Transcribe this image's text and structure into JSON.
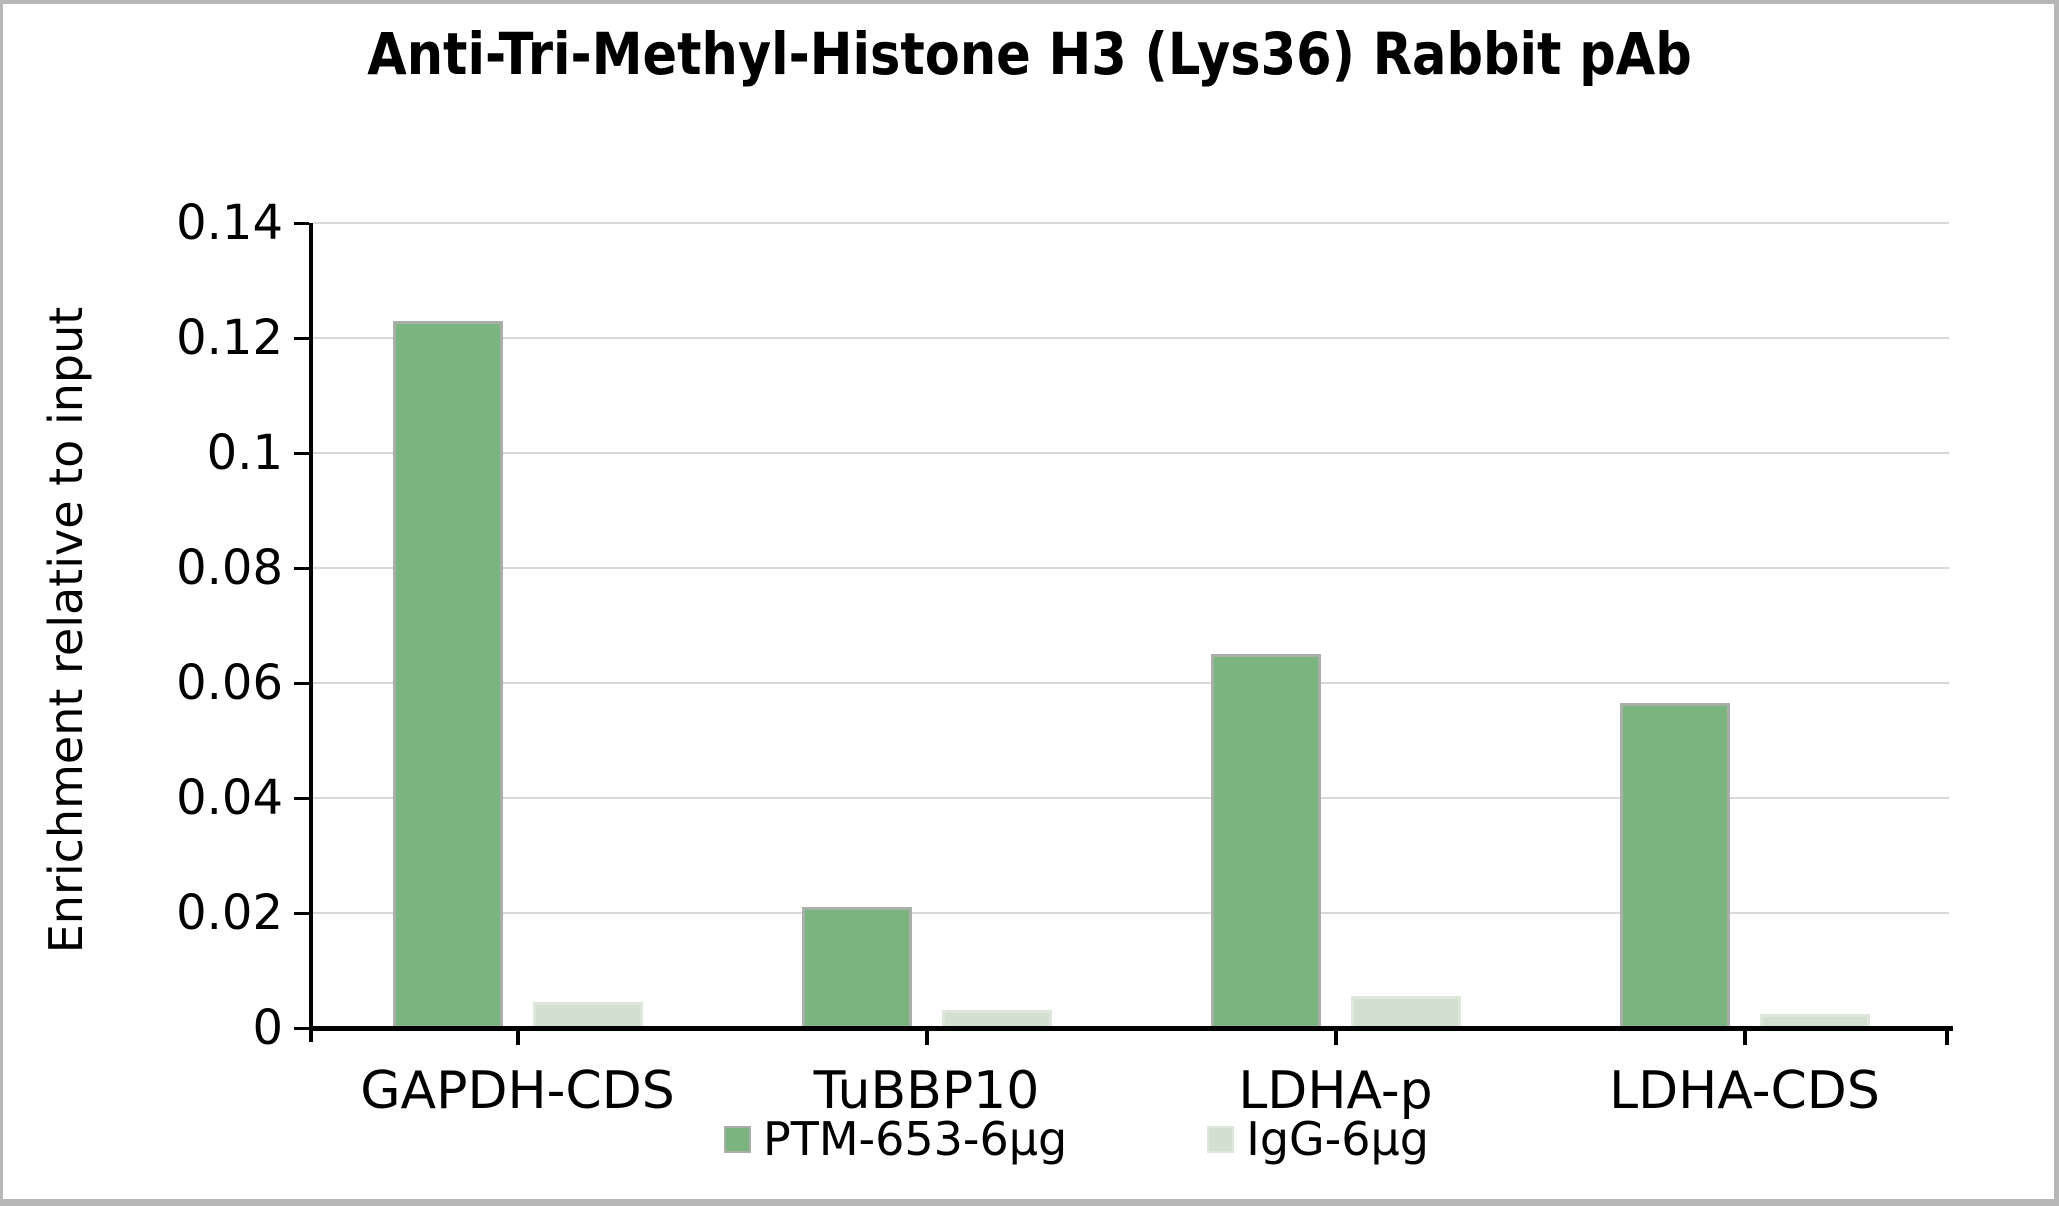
{
  "chart_data": {
    "type": "bar",
    "title": "Anti-Tri-Methyl-Histone H3 (Lys36) Rabbit pAb",
    "xlabel": "",
    "ylabel": "Enrichment relative to input",
    "categories": [
      "GAPDH-CDS",
      "TuBBP10",
      "LDHA-p",
      "LDHA-CDS"
    ],
    "series": [
      {
        "name": "PTM-653-6µg",
        "color": "#7cb480",
        "edge": "#a8aea8",
        "values": [
          0.123,
          0.021,
          0.065,
          0.0565
        ]
      },
      {
        "name": "IgG-6µg",
        "color": "#d1e0cf",
        "edge": "#dde7dc",
        "values": [
          0.0045,
          0.0032,
          0.0055,
          0.0025
        ]
      }
    ],
    "ylim": [
      0,
      0.14
    ],
    "yticks": [
      {
        "value": 0,
        "label": "0"
      },
      {
        "value": 0.02,
        "label": "0.02"
      },
      {
        "value": 0.04,
        "label": "0.04"
      },
      {
        "value": 0.06,
        "label": "0.06"
      },
      {
        "value": 0.08,
        "label": "0.08"
      },
      {
        "value": 0.1,
        "label": "0.1"
      },
      {
        "value": 0.12,
        "label": "0.12"
      },
      {
        "value": 0.14,
        "label": "0.14"
      }
    ],
    "grid": "horizontal",
    "legend_position": "bottom",
    "colors": {
      "background": "#ffffff",
      "axis": "#000000",
      "gridline": "#d9d9d9",
      "frame_border": "#b7b7b7",
      "text": "#000000"
    }
  }
}
